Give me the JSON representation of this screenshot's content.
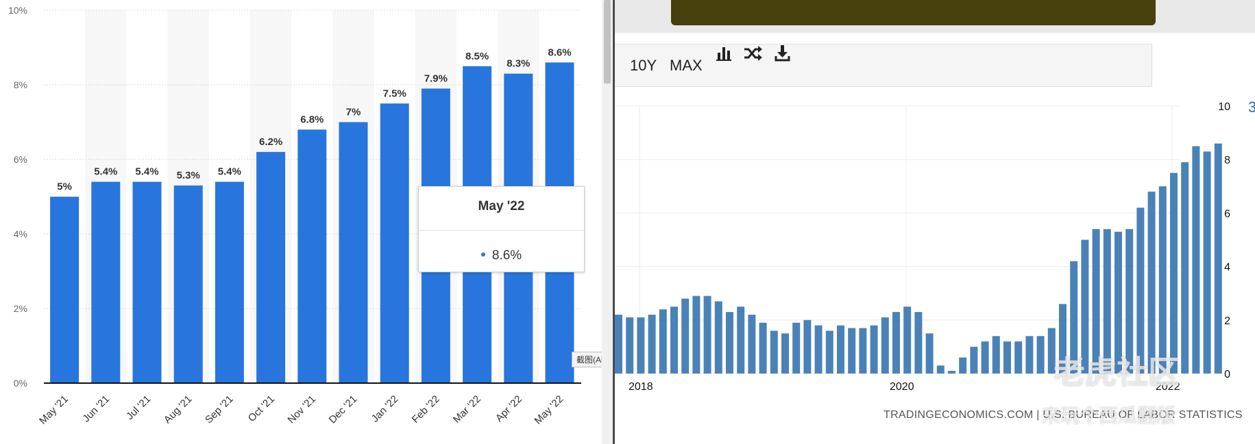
{
  "chart_data": [
    {
      "type": "bar",
      "categories": [
        "May '21",
        "Jun '21",
        "Jul '21",
        "Aug '21",
        "Sep '21",
        "Oct '21",
        "Nov '21",
        "Dec '21",
        "Jan '22",
        "Feb '22",
        "Mar '22",
        "Apr '22",
        "May '22"
      ],
      "values": [
        5,
        5.4,
        5.4,
        5.3,
        5.4,
        6.2,
        6.8,
        7,
        7.5,
        7.9,
        8.5,
        8.3,
        8.6
      ],
      "data_labels": [
        "5%",
        "5.4%",
        "5.4%",
        "5.3%",
        "5.4%",
        "6.2%",
        "6.8%",
        "7%",
        "7.5%",
        "7.9%",
        "8.5%",
        "8.3%",
        "8.6%"
      ],
      "y_tick_labels": [
        "0%",
        "2%",
        "4%",
        "6%",
        "8%",
        "10%"
      ],
      "ylim": [
        0,
        10
      ],
      "grid": true,
      "bar_color": "#2876dd",
      "tooltip": {
        "title": "May '22",
        "value": "8.6%"
      }
    },
    {
      "type": "bar",
      "x_tick_labels": [
        "2018",
        "2020",
        "2022"
      ],
      "y_tick_labels": [
        "0",
        "2",
        "4",
        "6",
        "8",
        "10"
      ],
      "ylim": [
        0,
        10
      ],
      "grid": true,
      "bar_color": "#4a82b8",
      "values": [
        2.2,
        2.1,
        2.1,
        2.2,
        2.4,
        2.5,
        2.8,
        2.9,
        2.9,
        2.7,
        2.3,
        2.5,
        2.2,
        1.9,
        1.6,
        1.5,
        1.9,
        2.0,
        1.8,
        1.6,
        1.8,
        1.7,
        1.7,
        1.8,
        2.1,
        2.3,
        2.5,
        2.3,
        1.5,
        0.3,
        0.1,
        0.6,
        1.0,
        1.2,
        1.4,
        1.2,
        1.2,
        1.4,
        1.4,
        1.7,
        2.6,
        4.2,
        5.0,
        5.4,
        5.4,
        5.3,
        5.4,
        6.2,
        6.8,
        7.0,
        7.5,
        7.9,
        8.5,
        8.3,
        8.6
      ]
    }
  ],
  "toolbar": {
    "btn_10y": "10Y",
    "btn_max": "MAX",
    "icons": [
      "bar-chart-icon",
      "shuffle-icon",
      "download-icon"
    ]
  },
  "right_axis_extra": "3",
  "source_text": "TRADINGECONOMICS.COM | U.S. BUREAU OF LABOR STATISTICS",
  "hint_text": "截图(Alt + A)",
  "watermark": {
    "main": "老虎社区",
    "sub": "来玩个西瓜翻版"
  }
}
